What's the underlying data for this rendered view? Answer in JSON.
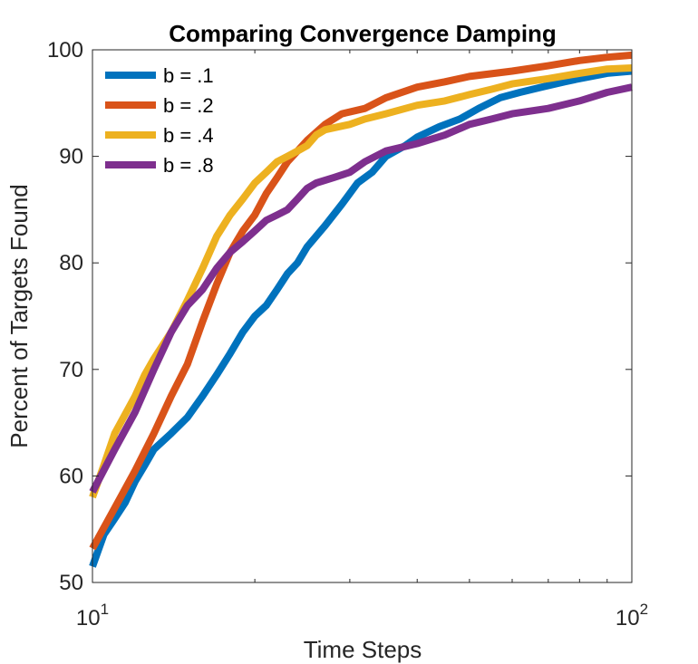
{
  "chart_data": {
    "type": "line",
    "title": "Comparing Convergence Damping",
    "xlabel": "Time Steps",
    "ylabel": "Percent of Targets Found",
    "xscale": "log",
    "xlim": [
      10,
      100
    ],
    "ylim": [
      50,
      100
    ],
    "yticks": [
      "50",
      "60",
      "70",
      "80",
      "90",
      "100"
    ],
    "xticks": [
      {
        "base": "10",
        "exp": "1"
      },
      {
        "base": "10",
        "exp": "2"
      }
    ],
    "grid": false,
    "legend_position": "top-left",
    "series": [
      {
        "name": "b = .1",
        "color": "#0072BD",
        "points": [
          [
            10,
            51.5
          ],
          [
            10.5,
            54.5
          ],
          [
            11,
            56
          ],
          [
            11.5,
            57.5
          ],
          [
            12,
            59.5
          ],
          [
            12.5,
            61
          ],
          [
            13,
            62.5
          ],
          [
            14,
            64
          ],
          [
            15,
            65.5
          ],
          [
            16,
            67.5
          ],
          [
            17,
            69.5
          ],
          [
            18,
            71.5
          ],
          [
            19,
            73.5
          ],
          [
            20,
            75
          ],
          [
            21,
            76
          ],
          [
            22,
            77.5
          ],
          [
            23,
            79
          ],
          [
            24,
            80
          ],
          [
            25,
            81.5
          ],
          [
            27,
            83.5
          ],
          [
            29,
            85.5
          ],
          [
            31,
            87.5
          ],
          [
            33,
            88.5
          ],
          [
            35,
            90
          ],
          [
            38,
            91
          ],
          [
            40,
            91.8
          ],
          [
            44,
            92.8
          ],
          [
            48,
            93.5
          ],
          [
            52,
            94.5
          ],
          [
            57,
            95.5
          ],
          [
            62,
            96
          ],
          [
            68,
            96.5
          ],
          [
            75,
            97
          ],
          [
            80,
            97.3
          ],
          [
            90,
            97.8
          ],
          [
            100,
            98
          ]
        ]
      },
      {
        "name": "b = .2",
        "color": "#D95319",
        "points": [
          [
            10,
            53.2
          ],
          [
            11,
            57
          ],
          [
            12,
            60.5
          ],
          [
            13,
            64
          ],
          [
            14,
            67.5
          ],
          [
            15,
            70.5
          ],
          [
            16,
            74.5
          ],
          [
            17,
            78
          ],
          [
            18,
            81
          ],
          [
            19,
            83
          ],
          [
            20,
            84.5
          ],
          [
            21,
            86.5
          ],
          [
            22,
            88
          ],
          [
            23,
            89.5
          ],
          [
            24,
            90.5
          ],
          [
            25,
            91.5
          ],
          [
            27,
            93
          ],
          [
            29,
            94
          ],
          [
            32,
            94.5
          ],
          [
            35,
            95.5
          ],
          [
            40,
            96.5
          ],
          [
            45,
            97
          ],
          [
            50,
            97.5
          ],
          [
            60,
            98
          ],
          [
            70,
            98.5
          ],
          [
            80,
            99
          ],
          [
            90,
            99.3
          ],
          [
            100,
            99.5
          ]
        ]
      },
      {
        "name": "b = .4",
        "color": "#EDB120",
        "points": [
          [
            10,
            58
          ],
          [
            10.5,
            61
          ],
          [
            11,
            64
          ],
          [
            12,
            67.5
          ],
          [
            12.5,
            69.5
          ],
          [
            13,
            71
          ],
          [
            14,
            73.5
          ],
          [
            15,
            76.5
          ],
          [
            16,
            79.5
          ],
          [
            17,
            82.5
          ],
          [
            18,
            84.5
          ],
          [
            19,
            86
          ],
          [
            20,
            87.5
          ],
          [
            21,
            88.5
          ],
          [
            22,
            89.5
          ],
          [
            23,
            90
          ],
          [
            24,
            90.5
          ],
          [
            25,
            91
          ],
          [
            26,
            92
          ],
          [
            27,
            92.5
          ],
          [
            30,
            93
          ],
          [
            32,
            93.5
          ],
          [
            35,
            94
          ],
          [
            40,
            94.8
          ],
          [
            45,
            95.2
          ],
          [
            50,
            95.8
          ],
          [
            55,
            96.3
          ],
          [
            60,
            96.8
          ],
          [
            70,
            97.3
          ],
          [
            80,
            97.8
          ],
          [
            90,
            98.2
          ],
          [
            100,
            98.3
          ]
        ]
      },
      {
        "name": "b = .8",
        "color": "#7E2F8E",
        "points": [
          [
            10,
            58.5
          ],
          [
            11,
            62.5
          ],
          [
            12,
            66
          ],
          [
            13,
            70
          ],
          [
            14,
            73.5
          ],
          [
            15,
            76
          ],
          [
            16,
            77.5
          ],
          [
            17,
            79.5
          ],
          [
            18,
            81
          ],
          [
            19,
            82
          ],
          [
            20,
            83
          ],
          [
            21,
            84
          ],
          [
            22,
            84.5
          ],
          [
            23,
            85
          ],
          [
            24,
            86
          ],
          [
            25,
            87
          ],
          [
            26,
            87.5
          ],
          [
            28,
            88
          ],
          [
            30,
            88.5
          ],
          [
            32,
            89.5
          ],
          [
            35,
            90.5
          ],
          [
            40,
            91.2
          ],
          [
            45,
            92
          ],
          [
            50,
            93
          ],
          [
            55,
            93.5
          ],
          [
            60,
            94
          ],
          [
            70,
            94.5
          ],
          [
            80,
            95.2
          ],
          [
            90,
            96
          ],
          [
            100,
            96.5
          ]
        ]
      }
    ]
  }
}
